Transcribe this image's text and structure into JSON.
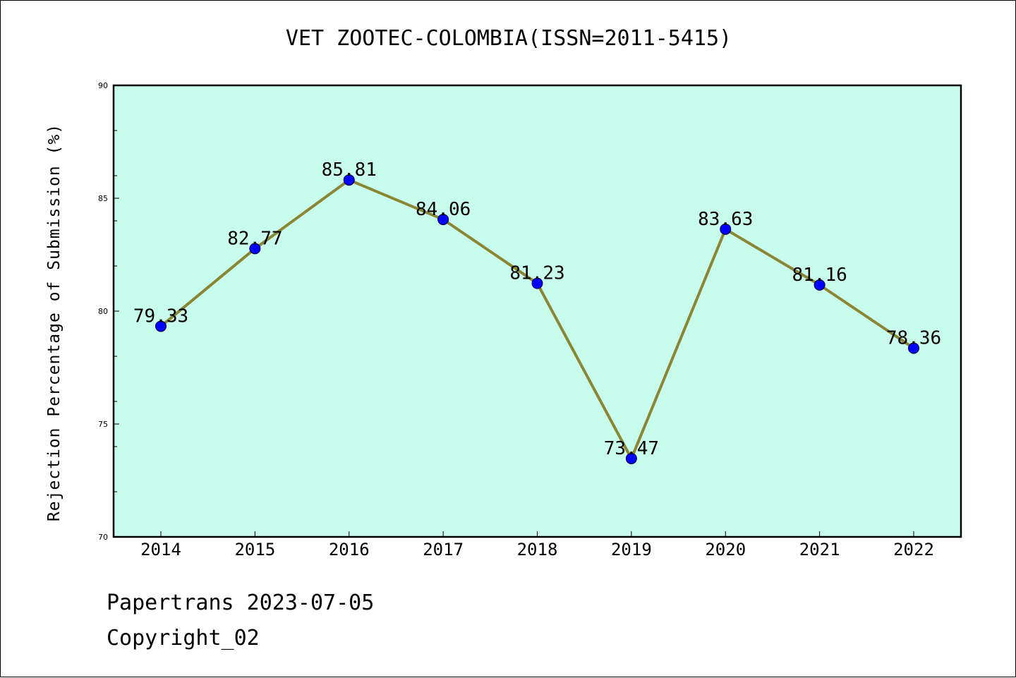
{
  "chart_data": {
    "type": "line",
    "title": "VET ZOOTEC-COLOMBIA(ISSN=2011-5415)",
    "xlabel": "",
    "ylabel": "Rejection Percentage of Submission (%)",
    "categories": [
      "2014",
      "2015",
      "2016",
      "2017",
      "2018",
      "2019",
      "2020",
      "2021",
      "2022"
    ],
    "series": [
      {
        "values": [
          79.33,
          82.77,
          85.81,
          84.06,
          81.23,
          73.47,
          83.63,
          81.16,
          78.36
        ]
      }
    ],
    "data_labels": [
      "79.33",
      "82.77",
      "85.81",
      "84.06",
      "81.23",
      "73.47",
      "83.63",
      "81.16",
      "78.36"
    ],
    "ylim": [
      70,
      90
    ],
    "yticks": [
      "70",
      "75",
      "80",
      "85",
      "90"
    ],
    "grid": false,
    "colors": {
      "plot_background": "#c8fcec",
      "line": "#8b8634",
      "marker": "#0000ff"
    }
  },
  "footer": {
    "line1": "Papertrans 2023-07-05",
    "line2": "Copyright_02"
  }
}
